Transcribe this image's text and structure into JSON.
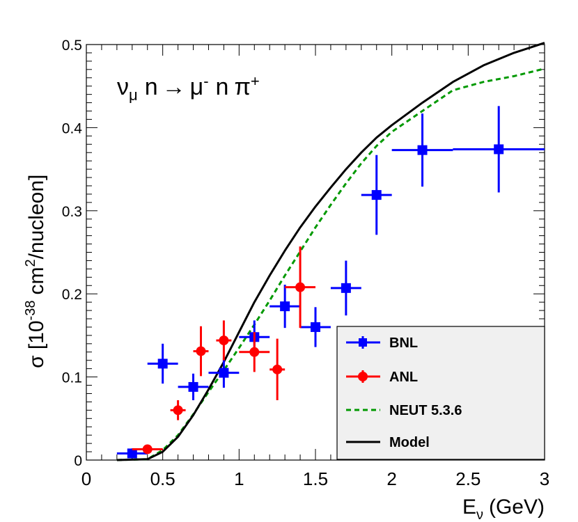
{
  "chart_data": {
    "type": "scatter",
    "title": "ν",
    "title_parts": {
      "nu": "ν",
      "nu_sub": "μ",
      "n1": "n",
      "arrow": "→",
      "mu": "μ",
      "mu_sup": "-",
      "n2": "n",
      "pi": "π",
      "pi_sup": "+"
    },
    "xlabel": {
      "main": "E",
      "sub": "ν",
      "unit": "(GeV)"
    },
    "ylabel": {
      "sigma": "σ [10",
      "exp": "-38",
      "cm": "cm",
      "sq": "2",
      "rest": "/nucleon]"
    },
    "xlim": [
      0,
      3
    ],
    "ylim": [
      0,
      0.5
    ],
    "x_ticks": [
      "0",
      "0.5",
      "1",
      "1.5",
      "2",
      "2.5",
      "3"
    ],
    "y_ticks": [
      "0",
      "0.1",
      "0.2",
      "0.3",
      "0.4",
      "0.5"
    ],
    "series": [
      {
        "name": "BNL",
        "kind": "points",
        "color": "#0000ff",
        "marker": "square",
        "points": [
          {
            "x": 0.3,
            "xerr": 0.1,
            "y": 0.008,
            "yerr": 0.006
          },
          {
            "x": 0.5,
            "xerr": 0.1,
            "y": 0.116,
            "yerr": 0.024
          },
          {
            "x": 0.7,
            "xerr": 0.1,
            "y": 0.088,
            "yerr": 0.016
          },
          {
            "x": 0.9,
            "xerr": 0.1,
            "y": 0.105,
            "yerr": 0.018
          },
          {
            "x": 1.1,
            "xerr": 0.1,
            "y": 0.148,
            "yerr": 0.02
          },
          {
            "x": 1.3,
            "xerr": 0.1,
            "y": 0.185,
            "yerr": 0.026
          },
          {
            "x": 1.5,
            "xerr": 0.1,
            "y": 0.16,
            "yerr": 0.024
          },
          {
            "x": 1.7,
            "xerr": 0.1,
            "y": 0.207,
            "yerr": 0.033
          },
          {
            "x": 1.9,
            "xerr": 0.1,
            "y": 0.319,
            "yerr": 0.048
          },
          {
            "x": 2.2,
            "xerr": 0.2,
            "y": 0.373,
            "yerr": 0.044
          },
          {
            "x": 2.7,
            "xerr": 0.3,
            "y": 0.374,
            "yerr": 0.052
          }
        ]
      },
      {
        "name": "ANL",
        "kind": "points",
        "color": "#ff0000",
        "marker": "circle",
        "points": [
          {
            "x": 0.4,
            "xerr": 0.1,
            "y": 0.013,
            "yerr": 0.004
          },
          {
            "x": 0.6,
            "xerr": 0.05,
            "y": 0.06,
            "yerr": 0.012
          },
          {
            "x": 0.75,
            "xerr": 0.05,
            "y": 0.131,
            "yerr": 0.03
          },
          {
            "x": 0.9,
            "xerr": 0.05,
            "y": 0.144,
            "yerr": 0.024
          },
          {
            "x": 1.1,
            "xerr": 0.1,
            "y": 0.13,
            "yerr": 0.024
          },
          {
            "x": 1.25,
            "xerr": 0.05,
            "y": 0.109,
            "yerr": 0.037
          },
          {
            "x": 1.4,
            "xerr": 0.1,
            "y": 0.208,
            "yerr": 0.049
          }
        ]
      },
      {
        "name": "NEUT 5.3.6",
        "kind": "line",
        "color": "#009900",
        "dash": true,
        "x": [
          0.2,
          0.4,
          0.5,
          0.6,
          0.7,
          0.8,
          0.9,
          1.0,
          1.1,
          1.2,
          1.3,
          1.4,
          1.5,
          1.6,
          1.7,
          1.8,
          1.9,
          2.0,
          2.2,
          2.4,
          2.6,
          2.8,
          3.0
        ],
        "y": [
          0.0,
          0.001,
          0.012,
          0.03,
          0.055,
          0.082,
          0.108,
          0.135,
          0.163,
          0.192,
          0.222,
          0.251,
          0.28,
          0.307,
          0.333,
          0.357,
          0.378,
          0.395,
          0.42,
          0.445,
          0.455,
          0.462,
          0.471
        ]
      },
      {
        "name": "Model",
        "kind": "line",
        "color": "#000000",
        "dash": false,
        "x": [
          0.2,
          0.4,
          0.5,
          0.6,
          0.7,
          0.8,
          0.9,
          1.0,
          1.1,
          1.2,
          1.3,
          1.4,
          1.5,
          1.6,
          1.7,
          1.8,
          1.9,
          2.0,
          2.2,
          2.4,
          2.6,
          2.8,
          3.0
        ],
        "y": [
          0.0,
          0.001,
          0.01,
          0.028,
          0.054,
          0.085,
          0.118,
          0.154,
          0.19,
          0.222,
          0.252,
          0.28,
          0.305,
          0.328,
          0.35,
          0.37,
          0.388,
          0.403,
          0.43,
          0.455,
          0.475,
          0.49,
          0.502
        ]
      }
    ],
    "legend": {
      "position": "bottom-right",
      "entries": [
        "BNL",
        "ANL",
        "NEUT 5.3.6",
        "Model"
      ]
    }
  }
}
